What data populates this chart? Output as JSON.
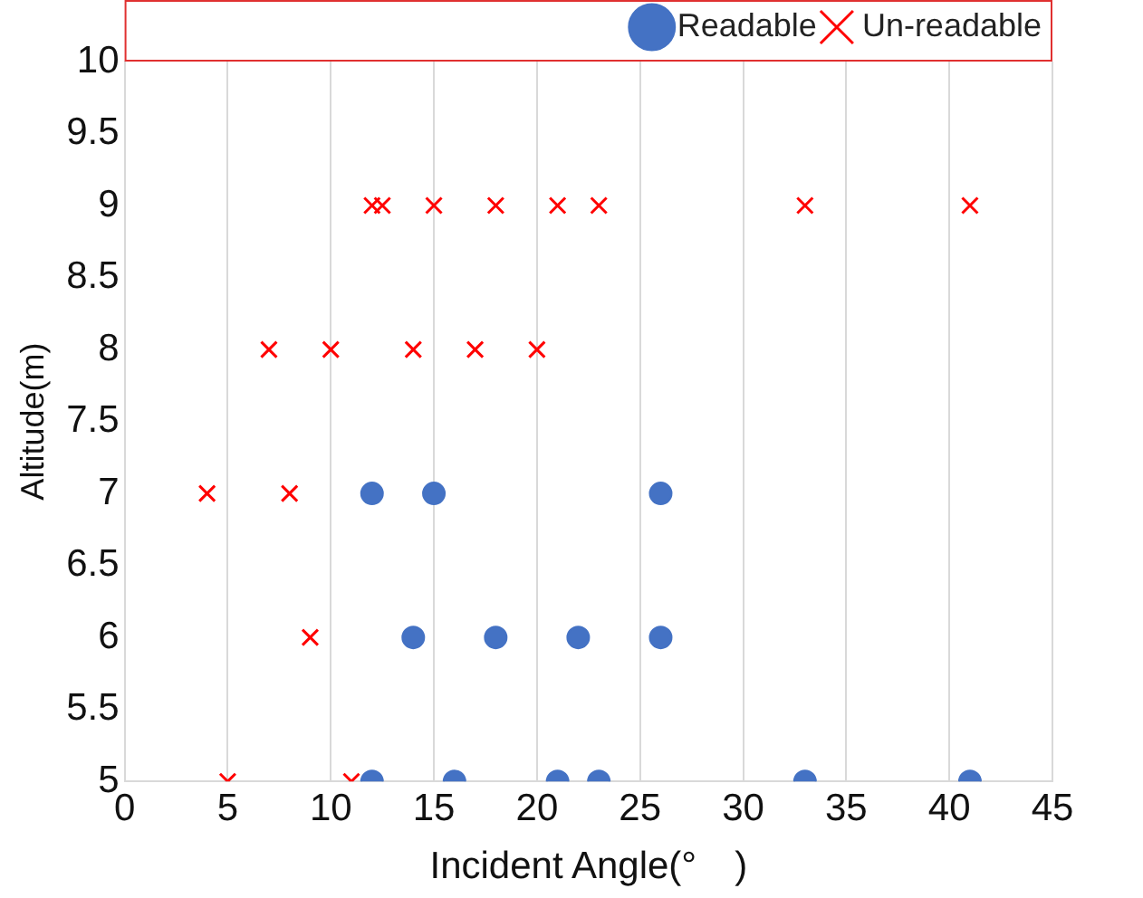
{
  "chart_data": {
    "type": "scatter",
    "xlabel": "Incident Angle(°　)",
    "ylabel": "Altitude(m)",
    "xlim": [
      0,
      45
    ],
    "xticks": [
      0,
      5,
      10,
      15,
      20,
      25,
      30,
      35,
      40,
      45
    ],
    "ylim": [
      5,
      10
    ],
    "yticks": [
      5,
      5.5,
      6,
      6.5,
      7,
      7.5,
      8,
      8.5,
      9,
      9.5,
      10
    ],
    "grid": "x",
    "legend": "top right",
    "series": [
      {
        "name": "Readable",
        "color": "#4472c4",
        "marker": "circle",
        "x": [
          12,
          15,
          26,
          14,
          18,
          22,
          26,
          12,
          16,
          21,
          23,
          33,
          41
        ],
        "values": [
          7,
          7,
          7,
          6,
          6,
          6,
          6,
          5,
          5,
          5,
          5,
          5,
          5
        ]
      },
      {
        "name": "Un-readable",
        "color": "#ff0000",
        "marker": "cross",
        "x": [
          12,
          12.5,
          15,
          18,
          21,
          23,
          33,
          41,
          7,
          10,
          14,
          17,
          20,
          4,
          8,
          9,
          5,
          11
        ],
        "values": [
          9,
          9,
          9,
          9,
          9,
          9,
          9,
          9,
          8,
          8,
          8,
          8,
          8,
          7,
          7,
          6,
          5,
          5
        ]
      }
    ]
  }
}
